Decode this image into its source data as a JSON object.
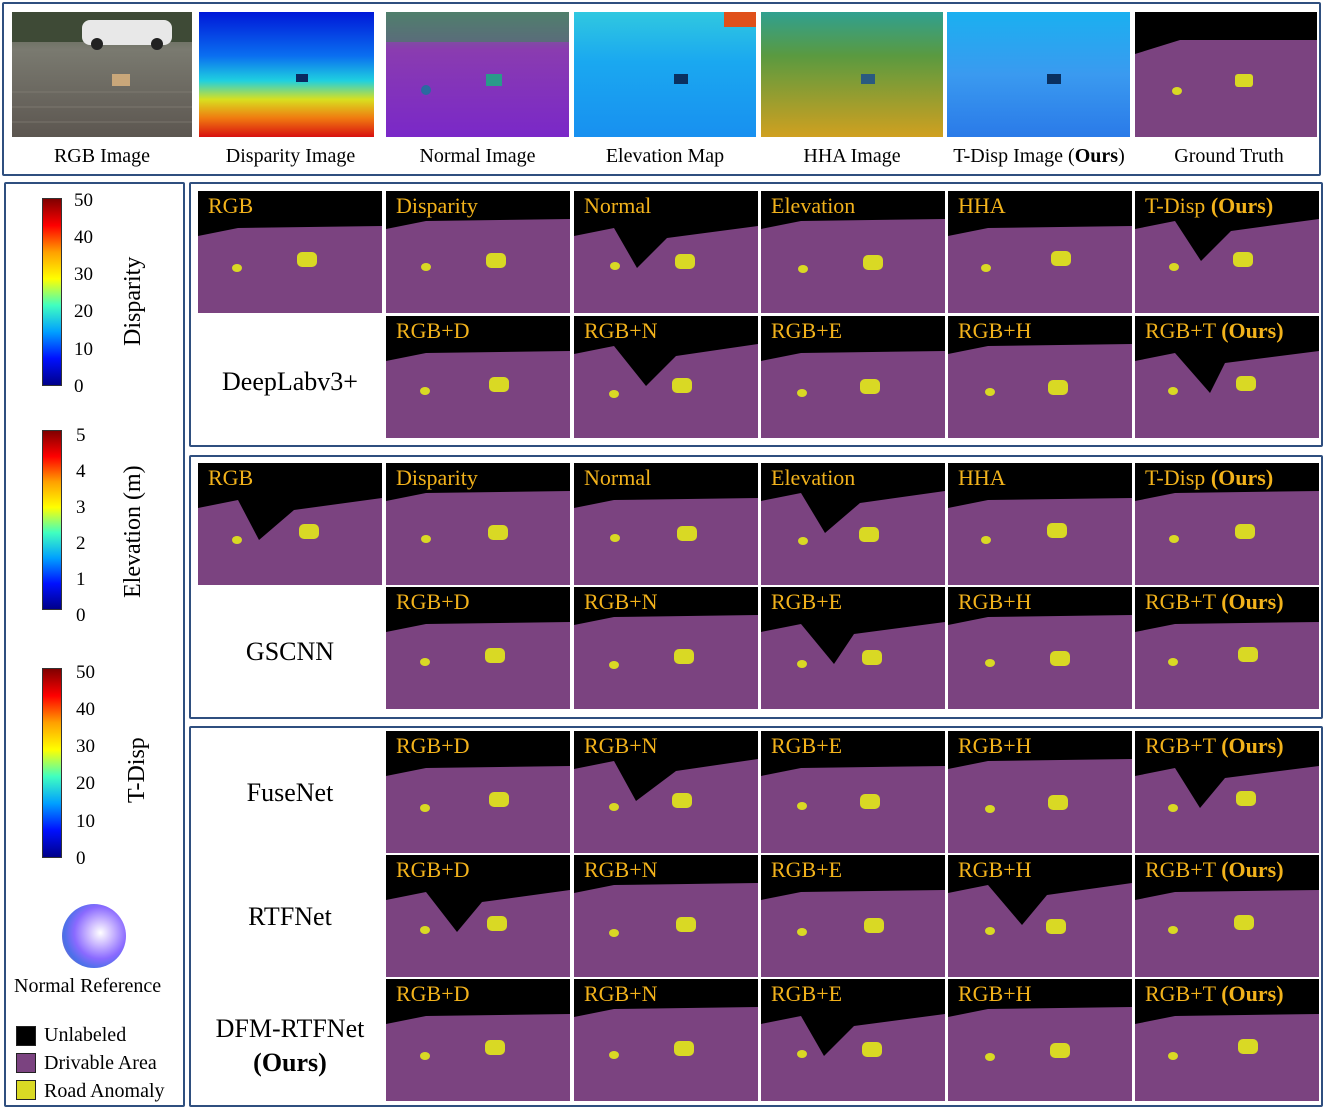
{
  "top_row": {
    "captions": [
      "RGB Image",
      "Disparity Image",
      "Normal Image",
      "Elevation Map",
      "HHA Image",
      "T-Disp Image (",
      "Ours",
      ")",
      "Ground Truth"
    ]
  },
  "colorbars": {
    "disparity": {
      "label": "Disparity",
      "ticks": [
        "50",
        "40",
        "30",
        "20",
        "10",
        "0"
      ]
    },
    "elevation": {
      "label": "Elevation (m)",
      "ticks": [
        "5",
        "4",
        "3",
        "2",
        "1",
        "0"
      ]
    },
    "tdisp": {
      "label": "T-Disp",
      "ticks": [
        "50",
        "40",
        "30",
        "20",
        "10",
        "0"
      ]
    }
  },
  "normal_reference": "Normal Reference",
  "legend": [
    {
      "label": "Unlabeled",
      "color": "#000000"
    },
    {
      "label": "Drivable Area",
      "color": "#7b4380"
    },
    {
      "label": "Road Anomaly",
      "color": "#d9d924"
    }
  ],
  "section1": {
    "row_name": "DeepLabv3+",
    "row1": [
      "RGB",
      "Disparity",
      "Normal",
      "Elevation",
      "HHA",
      "T-Disp "
    ],
    "row2": [
      "RGB+D",
      "RGB+N",
      "RGB+E",
      "RGB+H",
      "RGB+T "
    ]
  },
  "section2": {
    "row_name": "GSCNN",
    "row1": [
      "RGB",
      "Disparity",
      "Normal",
      "Elevation",
      "HHA",
      "T-Disp "
    ],
    "row2": [
      "RGB+D",
      "RGB+N",
      "RGB+E",
      "RGB+H",
      "RGB+T "
    ]
  },
  "section3": {
    "rows": [
      {
        "name": "FuseNet",
        "labels": [
          "RGB+D",
          "RGB+N",
          "RGB+E",
          "RGB+H",
          "RGB+T "
        ]
      },
      {
        "name": "RTFNet",
        "labels": [
          "RGB+D",
          "RGB+N",
          "RGB+E",
          "RGB+H",
          "RGB+T "
        ]
      },
      {
        "name": "DFM-RTFNet",
        "name_ours": "(Ours)",
        "labels": [
          "RGB+D",
          "RGB+N",
          "RGB+E",
          "RGB+H",
          "RGB+T "
        ]
      }
    ]
  },
  "ours": "(Ours)",
  "colors": {
    "unlabeled": "#000000",
    "drivable": "#7b4380",
    "anomaly": "#d9d924",
    "label_text": "#f2b21b",
    "frame": "#2f4f7f"
  }
}
